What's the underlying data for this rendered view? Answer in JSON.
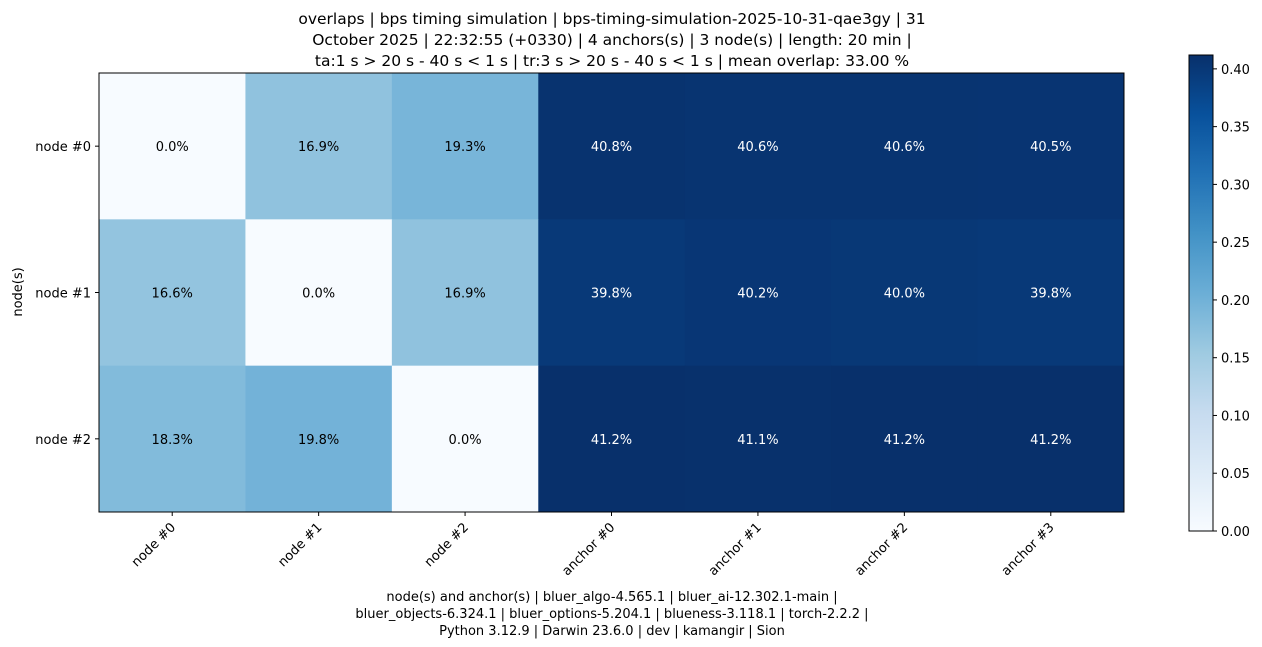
{
  "chart_data": {
    "type": "heatmap",
    "title_lines": [
      "overlaps | bps timing simulation | bps-timing-simulation-2025-10-31-qae3gy | 31",
      "October 2025 | 22:32:55 (+0330) | 4 anchors(s) | 3 node(s) | length: 20 min |",
      "ta:1 s > 20 s - 40 s < 1 s | tr:3 s > 20 s - 40 s < 1 s | mean overlap: 33.00 %"
    ],
    "xlabel_lines": [
      "node(s) and anchor(s) | bluer_algo-4.565.1 | bluer_ai-12.302.1-main |",
      "bluer_objects-6.324.1 | bluer_options-5.204.1 | blueness-3.118.1 | torch-2.2.2 |",
      "Python 3.12.9 | Darwin 23.6.0 | dev | kamangir | Sion"
    ],
    "ylabel": "node(s)",
    "x_categories": [
      "node #0",
      "node #1",
      "node #2",
      "anchor #0",
      "anchor #1",
      "anchor #2",
      "anchor #3"
    ],
    "y_categories": [
      "node #0",
      "node #1",
      "node #2"
    ],
    "values": [
      [
        0.0,
        0.169,
        0.193,
        0.408,
        0.406,
        0.406,
        0.405
      ],
      [
        0.166,
        0.0,
        0.169,
        0.398,
        0.402,
        0.4,
        0.398
      ],
      [
        0.183,
        0.198,
        0.0,
        0.412,
        0.411,
        0.412,
        0.412
      ]
    ],
    "cell_labels": [
      [
        "0.0%",
        "16.9%",
        "19.3%",
        "40.8%",
        "40.6%",
        "40.6%",
        "40.5%"
      ],
      [
        "16.6%",
        "0.0%",
        "16.9%",
        "39.8%",
        "40.2%",
        "40.0%",
        "39.8%"
      ],
      [
        "18.3%",
        "19.8%",
        "0.0%",
        "41.2%",
        "41.1%",
        "41.2%",
        "41.2%"
      ]
    ],
    "colormap": "Blues",
    "colorbar": {
      "range": [
        0.0,
        0.412
      ],
      "ticks": [
        "0.00",
        "0.05",
        "0.10",
        "0.15",
        "0.20",
        "0.25",
        "0.30",
        "0.35",
        "0.40"
      ]
    }
  }
}
